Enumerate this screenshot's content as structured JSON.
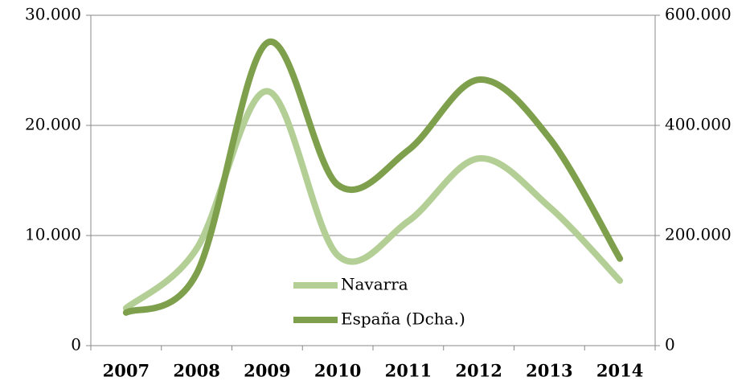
{
  "chart_data": {
    "type": "line",
    "categories": [
      "2007",
      "2008",
      "2009",
      "2010",
      "2011",
      "2012",
      "2013",
      "2014"
    ],
    "series": [
      {
        "name": "Navarra",
        "color": "#b3cf95",
        "values": [
          3400,
          8800,
          23100,
          8200,
          11300,
          17000,
          12600,
          5900
        ]
      },
      {
        "name": "España (Dcha.)",
        "color": "#7ea04c",
        "axis": "y2",
        "values": [
          60000,
          131000,
          550000,
          292000,
          355000,
          483000,
          377000,
          158000
        ]
      }
    ],
    "ylim": [
      0,
      30000
    ],
    "yticks": [
      0,
      {
        "value": 10000,
        "label": "10.000"
      },
      {
        "value": 20000,
        "label": "20.000"
      },
      {
        "value": 30000,
        "label": "30.000"
      }
    ],
    "y2lim": [
      0,
      600000
    ],
    "y2ticks": [
      0,
      {
        "value": 200000,
        "label": "200.000"
      },
      {
        "value": 400000,
        "label": "400.000"
      },
      {
        "value": 600000,
        "label": "600.000"
      }
    ],
    "grid": true,
    "smooth": true
  }
}
